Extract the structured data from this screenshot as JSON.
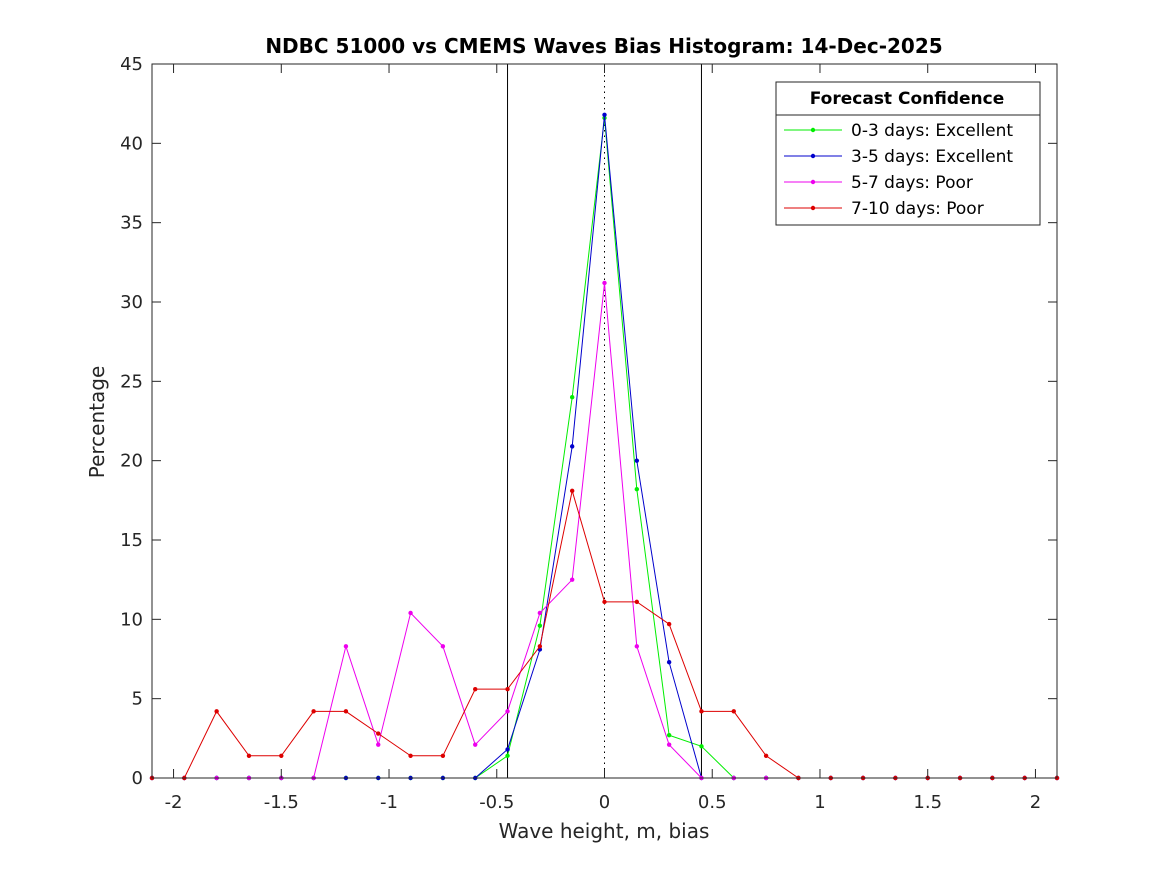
{
  "chart_data": {
    "type": "line",
    "title": "NDBC 51000 vs CMEMS Waves Bias Histogram: 14-Dec-2025",
    "xlabel": "Wave height, m, bias",
    "ylabel": "Percentage",
    "xlim": [
      -2.1,
      2.1
    ],
    "ylim": [
      0,
      45
    ],
    "xticks": [
      -2,
      -1.5,
      -1,
      -0.5,
      0,
      0.5,
      1,
      1.5,
      2
    ],
    "xtick_labels": [
      "-2",
      "-1.5",
      "-1",
      "-0.5",
      "0",
      "0.5",
      "1",
      "1.5",
      "2"
    ],
    "yticks": [
      0,
      5,
      10,
      15,
      20,
      25,
      30,
      35,
      40,
      45
    ],
    "ytick_labels": [
      "0",
      "5",
      "10",
      "15",
      "20",
      "25",
      "30",
      "35",
      "40",
      "45"
    ],
    "grid": false,
    "reference_lines": [
      {
        "x": -0.45,
        "style": "solid",
        "color": "#000000"
      },
      {
        "x": 0,
        "style": "dotted",
        "color": "#000000"
      },
      {
        "x": 0.45,
        "style": "solid",
        "color": "#000000"
      }
    ],
    "legend": {
      "title": "Forecast Confidence",
      "placement": "top-right"
    },
    "x": [
      -2.1,
      -1.95,
      -1.8,
      -1.65,
      -1.5,
      -1.35,
      -1.2,
      -1.05,
      -0.9,
      -0.75,
      -0.6,
      -0.45,
      -0.3,
      -0.15,
      0,
      0.15,
      0.3,
      0.45,
      0.6,
      0.75,
      0.9,
      1.05,
      1.2,
      1.35,
      1.5,
      1.65,
      1.8,
      1.95,
      2.1
    ],
    "series": [
      {
        "name": "0-3 days: Excellent",
        "color": "#00ee00",
        "values": [
          0,
          0,
          0,
          0,
          0,
          0,
          0,
          0,
          0,
          0,
          0,
          1.4,
          9.6,
          24.0,
          41.6,
          18.2,
          2.7,
          2.0,
          0,
          0,
          0,
          0,
          0,
          0,
          0,
          0,
          0,
          0,
          0
        ]
      },
      {
        "name": "3-5 days: Excellent",
        "color": "#0000cc",
        "values": [
          0,
          0,
          0,
          0,
          0,
          0,
          0,
          0,
          0,
          0,
          0,
          1.8,
          8.1,
          20.9,
          41.8,
          20.0,
          7.3,
          0,
          0,
          0,
          0,
          0,
          0,
          0,
          0,
          0,
          0,
          0,
          0
        ]
      },
      {
        "name": "5-7 days: Poor",
        "color": "#ee00ee",
        "values": [
          0,
          0,
          0,
          0,
          0,
          0,
          8.3,
          2.1,
          10.4,
          8.3,
          2.1,
          4.2,
          10.4,
          12.5,
          31.2,
          8.3,
          2.1,
          0,
          0,
          0,
          0,
          0,
          0,
          0,
          0,
          0,
          0,
          0,
          0
        ]
      },
      {
        "name": "7-10 days: Poor",
        "color": "#dd0000",
        "values": [
          0,
          0,
          4.2,
          1.4,
          1.4,
          4.2,
          4.2,
          2.8,
          1.4,
          1.4,
          5.6,
          5.6,
          8.3,
          18.1,
          11.1,
          11.1,
          9.7,
          4.2,
          4.2,
          1.4,
          0,
          0,
          0,
          0,
          0,
          0,
          0,
          0,
          0
        ]
      }
    ]
  }
}
